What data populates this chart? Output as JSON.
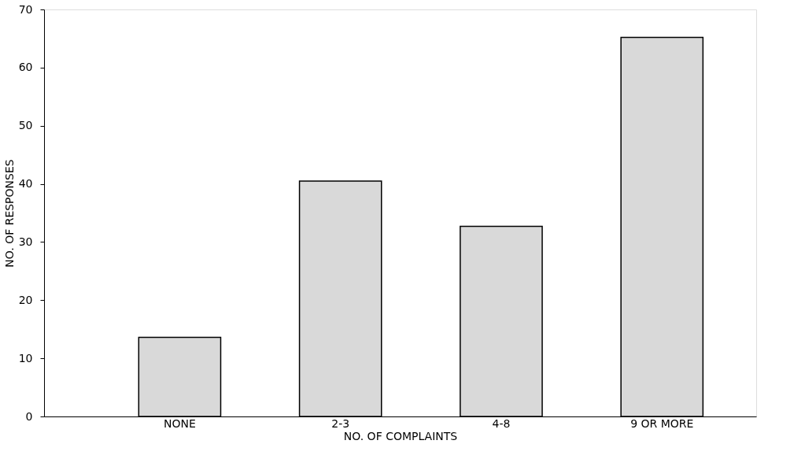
{
  "chart_data": {
    "type": "bar",
    "xlabel": "NO. OF COMPLAINTS",
    "ylabel": "NO. OF RESPONSES",
    "categories": [
      "NONE",
      "2-3",
      "4-8",
      "9 OR MORE"
    ],
    "values": [
      13.6,
      40.5,
      32.7,
      65.2
    ],
    "color": "#d9d9d9",
    "ylim": [
      0,
      70
    ],
    "yticks": [
      0,
      10,
      20,
      30,
      40,
      50,
      60,
      70
    ],
    "grid": false
  }
}
